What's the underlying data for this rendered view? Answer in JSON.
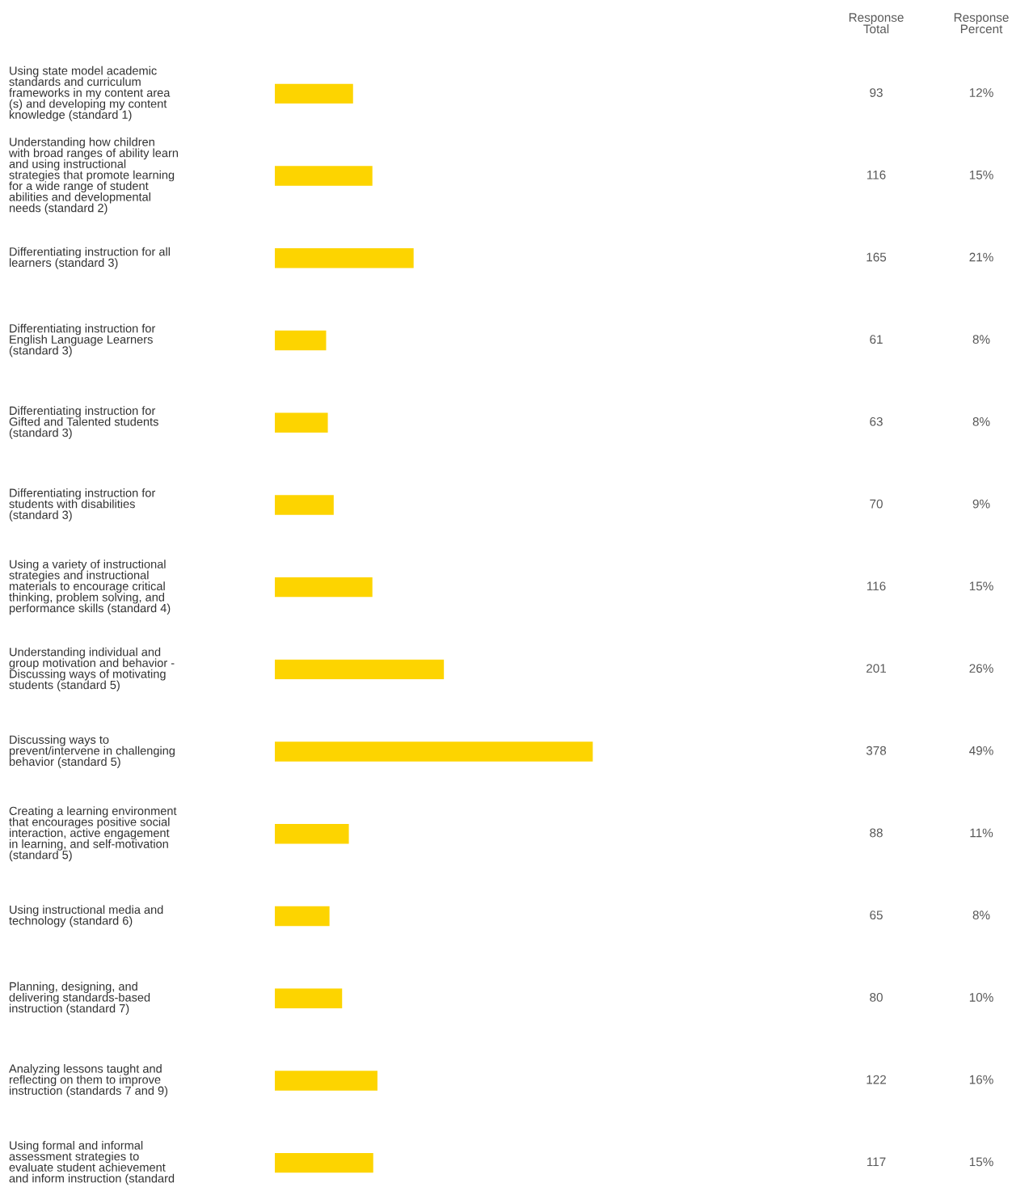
{
  "chart_data": {
    "type": "bar",
    "orientation": "horizontal",
    "categories": [
      "Using state model academic\nstandards and curriculum\nframeworks in my content area\n(s) and developing my content\nknowledge (standard 1)",
      "Understanding how children\nwith broad ranges of ability learn\nand using instructional\nstrategies that promote learning\nfor a wide range of student\nabilities and developmental\nneeds (standard 2)",
      "Differentiating instruction for all\nlearners (standard 3)",
      "Differentiating instruction for\nEnglish Language Learners\n(standard 3)",
      "Differentiating instruction for\nGifted and Talented students\n(standard 3)",
      "Differentiating instruction for\nstudents with disabilities\n(standard 3)",
      "Using a variety of instructional\nstrategies and instructional\nmaterials to encourage critical\nthinking, problem solving, and\nperformance skills (standard 4)",
      "Understanding individual and\ngroup motivation and behavior -\nDiscussing ways of motivating\nstudents (standard 5)",
      "Discussing ways to\nprevent/intervene in challenging\nbehavior (standard 5)",
      "Creating a learning environment\nthat encourages positive social\ninteraction, active engagement\nin learning, and self-motivation\n(standard 5)",
      "Using instructional media and\ntechnology (standard 6)",
      "Planning, designing, and\ndelivering standards-based\ninstruction (standard 7)",
      "Analyzing lessons taught and\nreflecting on them to improve\ninstruction (standards 7 and 9)",
      "Using formal and informal\nassessment strategies to\nevaluate student achievement\nand inform instruction (standard"
    ],
    "values": [
      93,
      116,
      165,
      61,
      63,
      70,
      116,
      201,
      378,
      88,
      65,
      80,
      122,
      117
    ],
    "data_labels": true,
    "color": "#fdd400",
    "annotations": [
      "Response\nTotal",
      "Response\nPercent",
      "12%",
      "15%",
      "21%",
      "8%",
      "8%",
      "9%",
      "15%",
      "26%",
      "49%",
      "11%",
      "8%",
      "10%",
      "16%",
      "15%"
    ]
  }
}
